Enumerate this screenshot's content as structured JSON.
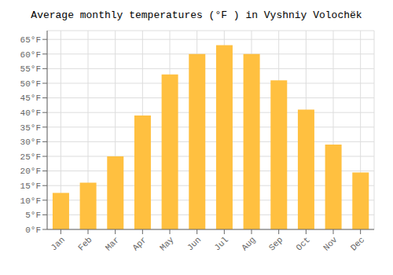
{
  "chart_data": {
    "type": "bar",
    "title": "Average monthly temperatures (°F ) in Vyshniy Volochëk",
    "categories": [
      "Jan",
      "Feb",
      "Mar",
      "Apr",
      "May",
      "Jun",
      "Jul",
      "Aug",
      "Sep",
      "Oct",
      "Nov",
      "Dec"
    ],
    "values": [
      12.5,
      16,
      25,
      39,
      53,
      60,
      63,
      60,
      51,
      41,
      29,
      19.5
    ],
    "color": "#FFC040",
    "ylim": [
      0,
      68
    ],
    "yticks": [
      {
        "value": 0,
        "label": "0°F"
      },
      {
        "value": 5,
        "label": "5°F"
      },
      {
        "value": 10,
        "label": "10°F"
      },
      {
        "value": 15,
        "label": "15°F"
      },
      {
        "value": 20,
        "label": "20°F"
      },
      {
        "value": 25,
        "label": "25°F"
      },
      {
        "value": 30,
        "label": "30°F"
      },
      {
        "value": 35,
        "label": "35°F"
      },
      {
        "value": 40,
        "label": "40°F"
      },
      {
        "value": 45,
        "label": "45°F"
      },
      {
        "value": 50,
        "label": "50°F"
      },
      {
        "value": 55,
        "label": "55°F"
      },
      {
        "value": 60,
        "label": "60°F"
      },
      {
        "value": 65,
        "label": "65°F"
      }
    ],
    "grid": true
  }
}
